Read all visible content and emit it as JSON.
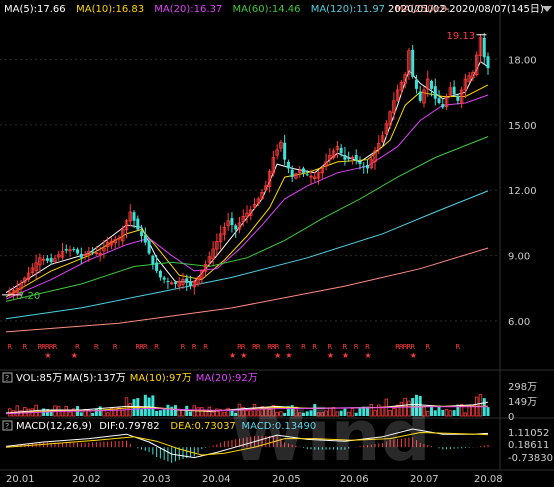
{
  "header": {
    "ma_labels": [
      {
        "text": "MA(5):17.66",
        "color": "#ffffff"
      },
      {
        "text": "MA(10):16.83",
        "color": "#ffd700"
      },
      {
        "text": "MA(20):16.37",
        "color": "#e040fb"
      },
      {
        "text": "MA(60):14.46",
        "color": "#3ec93e"
      },
      {
        "text": "MA(120):11.97",
        "color": "#4dd0e1"
      },
      {
        "text": "MA(250):9.",
        "color": "#ff8a80"
      }
    ],
    "range": "2020/01/02-2020/08/07(145日)",
    "dropdown_icon": "triangle-down-icon"
  },
  "volume_header": [
    {
      "text": "VOL:85万",
      "color": "#ffffff"
    },
    {
      "text": "MA(5):137万",
      "color": "#ffffff"
    },
    {
      "text": "MA(10):97万",
      "color": "#ffd700"
    },
    {
      "text": "MA(20):92万",
      "color": "#e040fb"
    }
  ],
  "macd_header": [
    {
      "text": "MACD(12,26,9)",
      "color": "#ffffff"
    },
    {
      "text": "DIF:0.79782",
      "color": "#ffffff"
    },
    {
      "text": "DEA:0.73037",
      "color": "#ffd700"
    },
    {
      "text": "MACD:0.13490",
      "color": "#4dd0e1"
    }
  ],
  "watermark": "Wind",
  "chart_data": {
    "type": "candlestick",
    "price_axis": {
      "ticks": [
        "18.00",
        "15.00",
        "12.00",
        "9.00",
        "6.00"
      ],
      "values": [
        18,
        15,
        12,
        9,
        6
      ],
      "ylim": [
        4.9,
        19.9
      ]
    },
    "volume_axis": {
      "ticks": [
        "298万",
        "149万",
        "0"
      ],
      "values": [
        298,
        149,
        0
      ]
    },
    "macd_axis": {
      "ticks": [
        "1.11052",
        "0.18611",
        "-0.73830"
      ],
      "values": [
        1.11052,
        0.18611,
        -0.7383
      ]
    },
    "x_ticks": [
      "20.01",
      "20.02",
      "20.03",
      "20.04",
      "20.05",
      "20.06",
      "20.07",
      "20.08"
    ],
    "annotations": {
      "low": "7.20",
      "high": "19.13"
    },
    "close_path": [
      [
        0,
        7.2
      ],
      [
        3,
        7.5
      ],
      [
        6,
        8.2
      ],
      [
        9,
        8.9
      ],
      [
        12,
        8.7
      ],
      [
        15,
        9.2
      ],
      [
        18,
        9.3
      ],
      [
        20,
        8.9
      ],
      [
        22,
        9.2
      ],
      [
        25,
        9.1
      ],
      [
        27,
        9.6
      ],
      [
        30,
        9.8
      ],
      [
        32,
        10.6
      ],
      [
        33,
        11.0
      ],
      [
        35,
        10.2
      ],
      [
        37,
        9.6
      ],
      [
        39,
        8.6
      ],
      [
        41,
        8.0
      ],
      [
        43,
        7.8
      ],
      [
        45,
        7.7
      ],
      [
        47,
        7.9
      ],
      [
        49,
        7.6
      ],
      [
        51,
        8.0
      ],
      [
        53,
        8.6
      ],
      [
        55,
        9.3
      ],
      [
        57,
        10.0
      ],
      [
        59,
        10.6
      ],
      [
        61,
        10.2
      ],
      [
        63,
        10.8
      ],
      [
        65,
        11.1
      ],
      [
        67,
        11.6
      ],
      [
        69,
        12.2
      ],
      [
        71,
        13.5
      ],
      [
        73,
        14.2
      ],
      [
        74,
        13.4
      ],
      [
        76,
        12.6
      ],
      [
        78,
        12.9
      ],
      [
        80,
        12.7
      ],
      [
        82,
        12.6
      ],
      [
        84,
        13.0
      ],
      [
        86,
        13.6
      ],
      [
        88,
        14.0
      ],
      [
        90,
        13.4
      ],
      [
        92,
        13.5
      ],
      [
        94,
        13.2
      ],
      [
        96,
        13.0
      ],
      [
        98,
        13.8
      ],
      [
        100,
        14.5
      ],
      [
        102,
        15.6
      ],
      [
        104,
        16.6
      ],
      [
        106,
        17.3
      ],
      [
        107,
        18.4
      ],
      [
        108,
        17.2
      ],
      [
        110,
        16.1
      ],
      [
        112,
        17.1
      ],
      [
        114,
        16.2
      ],
      [
        116,
        15.8
      ],
      [
        118,
        16.7
      ],
      [
        120,
        16.1
      ],
      [
        122,
        17.1
      ],
      [
        124,
        17.4
      ],
      [
        126,
        19.0
      ],
      [
        127,
        18.1
      ],
      [
        128,
        17.6
      ]
    ],
    "ma_lines": [
      {
        "name": "MA(5)",
        "color": "#ffffff",
        "points": [
          [
            0,
            7.3
          ],
          [
            12,
            8.6
          ],
          [
            22,
            9.1
          ],
          [
            32,
            10.4
          ],
          [
            36,
            10.3
          ],
          [
            40,
            8.9
          ],
          [
            45,
            7.8
          ],
          [
            50,
            7.8
          ],
          [
            56,
            9.0
          ],
          [
            62,
            10.3
          ],
          [
            68,
            11.6
          ],
          [
            72,
            13.2
          ],
          [
            76,
            13.0
          ],
          [
            82,
            12.8
          ],
          [
            88,
            13.7
          ],
          [
            94,
            13.3
          ],
          [
            100,
            14.0
          ],
          [
            104,
            15.9
          ],
          [
            107,
            17.5
          ],
          [
            110,
            16.9
          ],
          [
            116,
            16.2
          ],
          [
            122,
            16.5
          ],
          [
            126,
            17.9
          ],
          [
            128,
            17.66
          ]
        ]
      },
      {
        "name": "MA(10)",
        "color": "#ffd700",
        "points": [
          [
            0,
            7.1
          ],
          [
            12,
            8.3
          ],
          [
            22,
            9.0
          ],
          [
            32,
            10.0
          ],
          [
            36,
            10.2
          ],
          [
            40,
            9.4
          ],
          [
            46,
            8.1
          ],
          [
            52,
            7.9
          ],
          [
            58,
            8.8
          ],
          [
            64,
            9.9
          ],
          [
            70,
            11.2
          ],
          [
            74,
            12.6
          ],
          [
            80,
            12.8
          ],
          [
            88,
            13.3
          ],
          [
            96,
            13.4
          ],
          [
            102,
            14.3
          ],
          [
            106,
            15.9
          ],
          [
            110,
            16.5
          ],
          [
            116,
            16.3
          ],
          [
            122,
            16.3
          ],
          [
            128,
            16.83
          ]
        ]
      },
      {
        "name": "MA(20)",
        "color": "#e040fb",
        "points": [
          [
            0,
            7.0
          ],
          [
            12,
            7.9
          ],
          [
            22,
            8.8
          ],
          [
            32,
            9.5
          ],
          [
            38,
            9.8
          ],
          [
            44,
            9.0
          ],
          [
            50,
            8.3
          ],
          [
            56,
            8.4
          ],
          [
            62,
            9.3
          ],
          [
            68,
            10.4
          ],
          [
            74,
            11.6
          ],
          [
            80,
            12.2
          ],
          [
            88,
            12.8
          ],
          [
            96,
            13.1
          ],
          [
            104,
            14.0
          ],
          [
            110,
            15.2
          ],
          [
            116,
            15.9
          ],
          [
            122,
            16.0
          ],
          [
            128,
            16.37
          ]
        ]
      },
      {
        "name": "MA(60)",
        "color": "#3ec93e",
        "points": [
          [
            0,
            6.9
          ],
          [
            20,
            7.7
          ],
          [
            34,
            8.5
          ],
          [
            44,
            8.7
          ],
          [
            54,
            8.5
          ],
          [
            64,
            8.9
          ],
          [
            74,
            9.7
          ],
          [
            84,
            10.7
          ],
          [
            94,
            11.6
          ],
          [
            104,
            12.6
          ],
          [
            114,
            13.5
          ],
          [
            128,
            14.46
          ]
        ]
      },
      {
        "name": "MA(120)",
        "color": "#4dd0e1",
        "points": [
          [
            0,
            6.1
          ],
          [
            20,
            6.6
          ],
          [
            40,
            7.3
          ],
          [
            60,
            8.0
          ],
          [
            80,
            8.9
          ],
          [
            100,
            10.0
          ],
          [
            114,
            11.0
          ],
          [
            128,
            11.97
          ]
        ]
      },
      {
        "name": "MA(250)",
        "color": "#ff8a80",
        "points": [
          [
            0,
            5.5
          ],
          [
            30,
            5.9
          ],
          [
            60,
            6.6
          ],
          [
            90,
            7.6
          ],
          [
            110,
            8.4
          ],
          [
            128,
            9.35
          ]
        ]
      }
    ],
    "volume_ma": [
      {
        "name": "MA(5)",
        "color": "#ffffff",
        "points": [
          [
            0,
            30
          ],
          [
            10,
            60
          ],
          [
            20,
            60
          ],
          [
            32,
            95
          ],
          [
            38,
            90
          ],
          [
            46,
            60
          ],
          [
            54,
            45
          ],
          [
            62,
            70
          ],
          [
            72,
            95
          ],
          [
            80,
            75
          ],
          [
            90,
            80
          ],
          [
            100,
            85
          ],
          [
            108,
            115
          ],
          [
            116,
            95
          ],
          [
            124,
            110
          ],
          [
            128,
            137
          ]
        ]
      },
      {
        "name": "MA(10)",
        "color": "#ffd700",
        "points": [
          [
            0,
            25
          ],
          [
            12,
            50
          ],
          [
            24,
            55
          ],
          [
            34,
            85
          ],
          [
            42,
            75
          ],
          [
            52,
            50
          ],
          [
            62,
            60
          ],
          [
            72,
            85
          ],
          [
            82,
            75
          ],
          [
            94,
            80
          ],
          [
            104,
            90
          ],
          [
            114,
            95
          ],
          [
            128,
            97
          ]
        ]
      },
      {
        "name": "MA(20)",
        "color": "#e040fb",
        "points": [
          [
            0,
            22
          ],
          [
            14,
            45
          ],
          [
            28,
            55
          ],
          [
            38,
            75
          ],
          [
            48,
            62
          ],
          [
            58,
            55
          ],
          [
            70,
            72
          ],
          [
            84,
            76
          ],
          [
            98,
            82
          ],
          [
            112,
            92
          ],
          [
            128,
            92
          ]
        ]
      }
    ],
    "macd_lines": [
      {
        "name": "DIF",
        "color": "#ffffff",
        "points": [
          [
            0,
            0.05
          ],
          [
            10,
            0.3
          ],
          [
            22,
            0.5
          ],
          [
            32,
            0.75
          ],
          [
            38,
            0.3
          ],
          [
            44,
            -0.4
          ],
          [
            50,
            -0.6
          ],
          [
            56,
            -0.3
          ],
          [
            64,
            0.2
          ],
          [
            72,
            0.7
          ],
          [
            80,
            0.45
          ],
          [
            90,
            0.35
          ],
          [
            100,
            0.6
          ],
          [
            108,
            1.05
          ],
          [
            116,
            0.75
          ],
          [
            124,
            0.75
          ],
          [
            128,
            0.79782
          ]
        ]
      },
      {
        "name": "DEA",
        "color": "#ffd700",
        "points": [
          [
            0,
            0.0
          ],
          [
            12,
            0.2
          ],
          [
            24,
            0.4
          ],
          [
            34,
            0.6
          ],
          [
            40,
            0.35
          ],
          [
            46,
            -0.1
          ],
          [
            52,
            -0.45
          ],
          [
            58,
            -0.35
          ],
          [
            66,
            0.0
          ],
          [
            74,
            0.5
          ],
          [
            82,
            0.5
          ],
          [
            92,
            0.4
          ],
          [
            102,
            0.5
          ],
          [
            110,
            0.85
          ],
          [
            118,
            0.8
          ],
          [
            128,
            0.73037
          ]
        ]
      }
    ],
    "signal_rows": {
      "r_color": "#ff3b3b",
      "star_color": "#ff3b3b"
    }
  }
}
